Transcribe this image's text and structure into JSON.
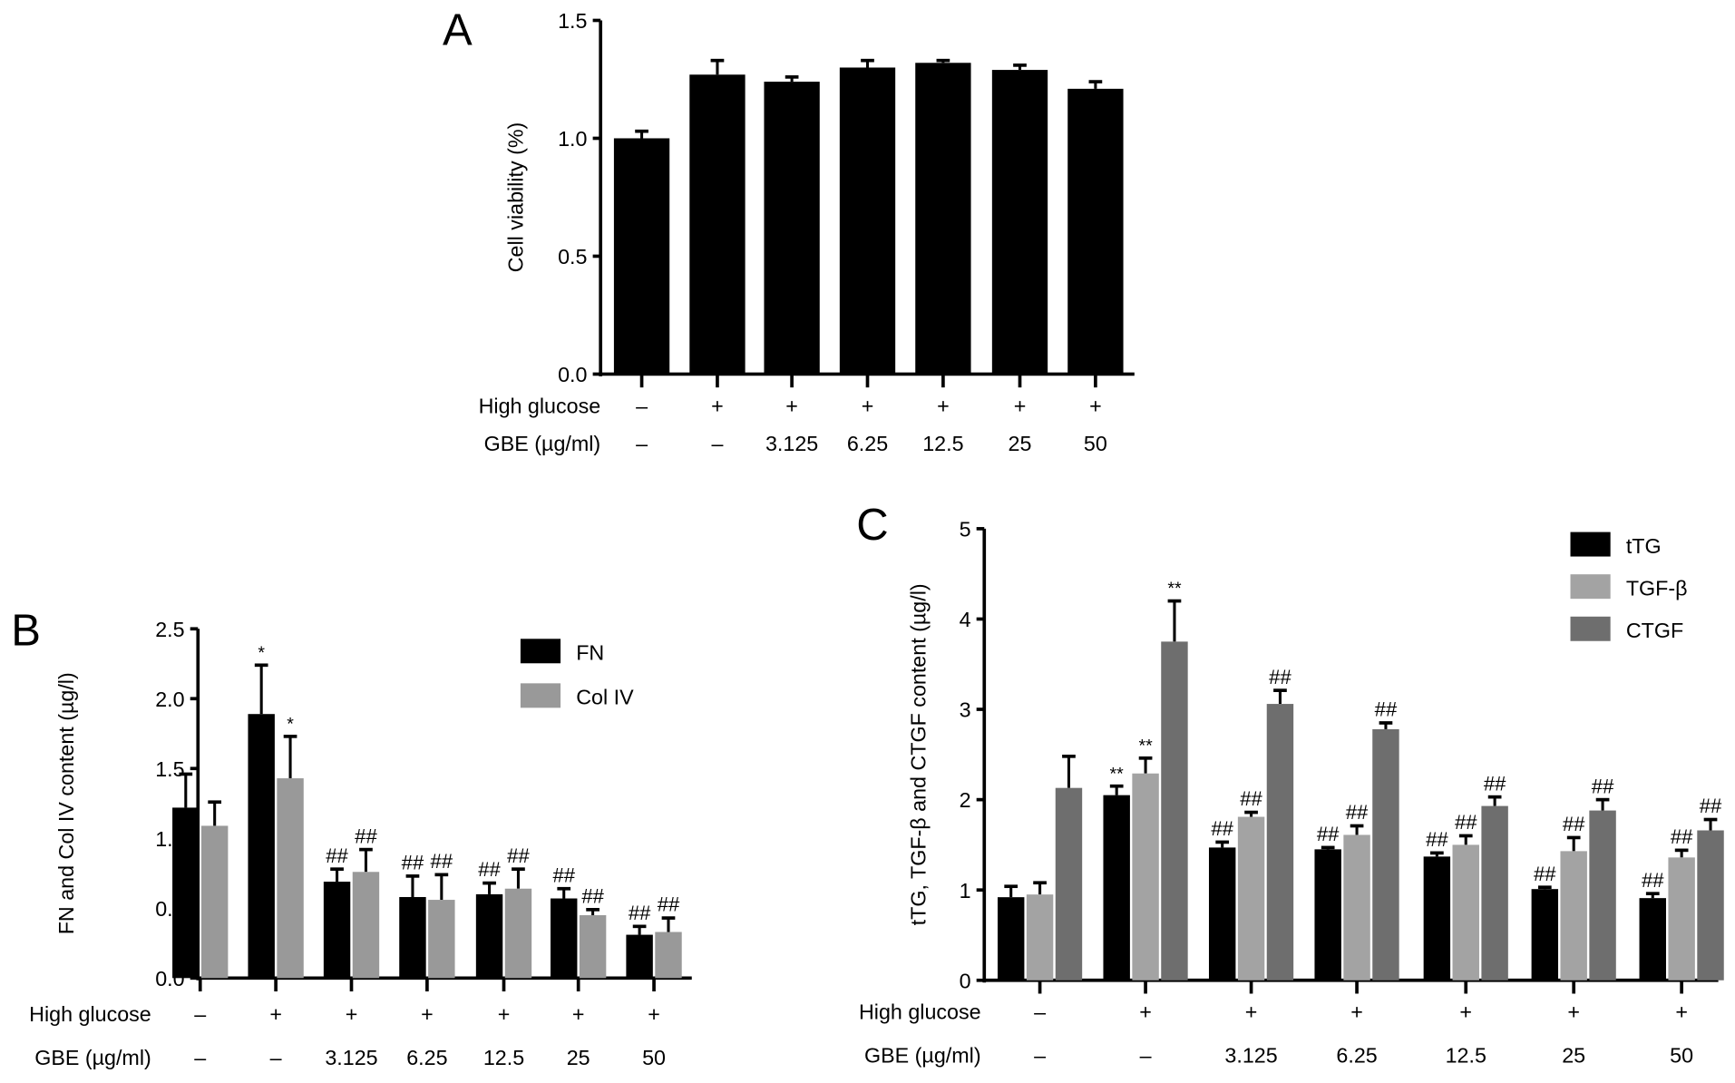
{
  "chart_data": [
    {
      "panel": "A",
      "type": "bar",
      "ylabel": "Cell viability (%)",
      "ylim": [
        0,
        1.5
      ],
      "yticks": [
        "0.0",
        "0.5",
        "1.0",
        "1.5"
      ],
      "row_labels": [
        "High glucose",
        "GBE (µg/ml)"
      ],
      "rows": [
        [
          "–",
          "+",
          "+",
          "+",
          "+",
          "+",
          "+"
        ],
        [
          "–",
          "–",
          "3.125",
          "6.25",
          "12.5",
          "25",
          "50"
        ]
      ],
      "series": [
        {
          "name": "Cell viability",
          "color": "#000000",
          "values": [
            1.0,
            1.27,
            1.24,
            1.3,
            1.32,
            1.29,
            1.21
          ],
          "errors": [
            0.03,
            0.06,
            0.02,
            0.03,
            0.01,
            0.02,
            0.03
          ],
          "annotations": [
            "",
            "",
            "",
            "",
            "",
            "",
            ""
          ]
        }
      ],
      "legend": "none"
    },
    {
      "panel": "B",
      "type": "bar",
      "ylabel": "FN and Col IV content (µg/l)",
      "ylim": [
        0,
        2.5
      ],
      "yticks": [
        "0.0",
        "0.5",
        "1.0",
        "1.5",
        "2.0",
        "2.5"
      ],
      "row_labels": [
        "High glucose",
        "GBE (µg/ml)"
      ],
      "rows": [
        [
          "–",
          "+",
          "+",
          "+",
          "+",
          "+",
          "+"
        ],
        [
          "–",
          "–",
          "3.125",
          "6.25",
          "12.5",
          "25",
          "50"
        ]
      ],
      "series": [
        {
          "name": "FN",
          "color": "#000000",
          "values": [
            1.22,
            1.89,
            0.69,
            0.58,
            0.6,
            0.57,
            0.31
          ],
          "errors": [
            0.24,
            0.35,
            0.09,
            0.15,
            0.08,
            0.07,
            0.06
          ],
          "annotations": [
            "",
            "*",
            "##",
            "##",
            "##",
            "##",
            "##"
          ]
        },
        {
          "name": "Col IV",
          "color": "#999999",
          "values": [
            1.09,
            1.43,
            0.76,
            0.56,
            0.64,
            0.45,
            0.33
          ],
          "errors": [
            0.17,
            0.3,
            0.16,
            0.18,
            0.14,
            0.04,
            0.1
          ],
          "annotations": [
            "",
            "*",
            "##",
            "##",
            "##",
            "##",
            "##"
          ]
        }
      ],
      "legend": "top-right"
    },
    {
      "panel": "C",
      "type": "bar",
      "ylabel": "tTG, TGF-β and CTGF content (µg/l)",
      "ylim": [
        0,
        5
      ],
      "yticks": [
        "0",
        "1",
        "2",
        "3",
        "4",
        "5"
      ],
      "row_labels": [
        "High glucose",
        "GBE (µg/ml)"
      ],
      "rows": [
        [
          "–",
          "+",
          "+",
          "+",
          "+",
          "+",
          "+"
        ],
        [
          "–",
          "–",
          "3.125",
          "6.25",
          "12.5",
          "25",
          "50"
        ]
      ],
      "series": [
        {
          "name": "tTG",
          "color": "#000000",
          "values": [
            0.92,
            2.05,
            1.47,
            1.45,
            1.37,
            1.01,
            0.91
          ],
          "errors": [
            0.12,
            0.1,
            0.06,
            0.02,
            0.04,
            0.02,
            0.05
          ],
          "annotations": [
            "",
            "**",
            "##",
            "##",
            "##",
            "##",
            "##"
          ]
        },
        {
          "name": "TGF-β",
          "color": "#a3a3a3",
          "values": [
            0.95,
            2.29,
            1.81,
            1.61,
            1.5,
            1.43,
            1.36
          ],
          "errors": [
            0.13,
            0.17,
            0.05,
            0.1,
            0.1,
            0.15,
            0.08
          ],
          "annotations": [
            "",
            "**",
            "##",
            "##",
            "##",
            "##",
            "##"
          ]
        },
        {
          "name": "CTGF",
          "color": "#6e6e6e",
          "values": [
            2.13,
            3.75,
            3.06,
            2.78,
            1.93,
            1.88,
            1.66
          ],
          "errors": [
            0.35,
            0.45,
            0.15,
            0.07,
            0.1,
            0.12,
            0.12
          ],
          "annotations": [
            "",
            "**",
            "##",
            "##",
            "##",
            "##",
            "##"
          ]
        }
      ],
      "legend": "top-right"
    }
  ]
}
